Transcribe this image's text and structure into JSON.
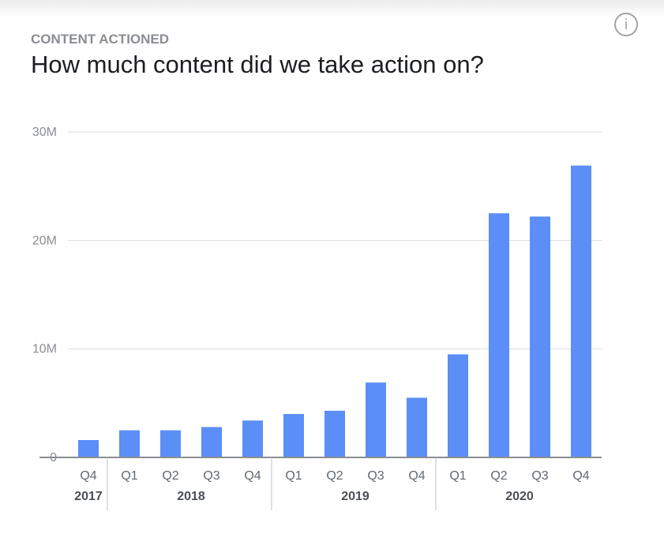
{
  "header": {
    "eyebrow": "CONTENT ACTIONED",
    "title": "How much content did we take action on?",
    "info_icon": "i"
  },
  "colors": {
    "bar": "#5b8ef7",
    "axis": "#8a8d93",
    "grid": "#dadde1"
  },
  "chart_data": {
    "type": "bar",
    "title": "How much content did we take action on?",
    "categories": [
      "Q4 2017",
      "Q1 2018",
      "Q2 2018",
      "Q3 2018",
      "Q4 2018",
      "Q1 2019",
      "Q2 2019",
      "Q3 2019",
      "Q4 2019",
      "Q1 2020",
      "Q2 2020",
      "Q3 2020",
      "Q4 2020"
    ],
    "quarters": [
      "Q4",
      "Q1",
      "Q2",
      "Q3",
      "Q4",
      "Q1",
      "Q2",
      "Q3",
      "Q4",
      "Q1",
      "Q2",
      "Q3",
      "Q4"
    ],
    "years": [
      {
        "label": "2017",
        "count": 1
      },
      {
        "label": "2018",
        "count": 4
      },
      {
        "label": "2019",
        "count": 4
      },
      {
        "label": "2020",
        "count": 4
      }
    ],
    "values": [
      1.6,
      2.5,
      2.5,
      2.8,
      3.4,
      4.0,
      4.3,
      6.9,
      5.5,
      9.5,
      22.5,
      22.2,
      26.9
    ],
    "unit": "M",
    "ylim": [
      0,
      30
    ],
    "yticks": [
      {
        "value": 0,
        "label": "0"
      },
      {
        "value": 10,
        "label": "10M"
      },
      {
        "value": 20,
        "label": "20M"
      },
      {
        "value": 30,
        "label": "30M"
      }
    ],
    "grid": true,
    "xlabel": "",
    "ylabel": ""
  }
}
